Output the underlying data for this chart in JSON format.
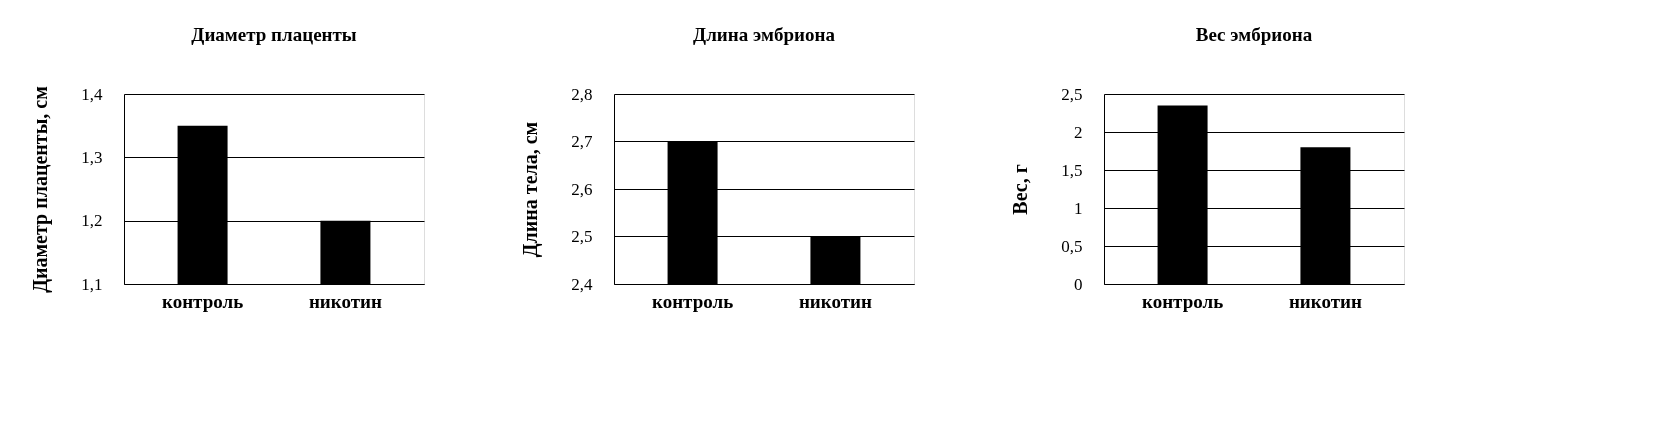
{
  "chart_data": [
    {
      "type": "bar",
      "title": "Диаметр плаценты",
      "ylabel": "Диаметр плаценты, см",
      "categories": [
        "контроль",
        "никотин"
      ],
      "values": [
        1.35,
        1.2
      ],
      "color": "#000000",
      "ylim": [
        1.1,
        1.4
      ],
      "yticks": [
        {
          "value": 1.1,
          "label": "1,1"
        },
        {
          "value": 1.2,
          "label": "1,2"
        },
        {
          "value": 1.3,
          "label": "1,3"
        },
        {
          "value": 1.4,
          "label": "1,4"
        }
      ],
      "grid": "y"
    },
    {
      "type": "bar",
      "title": "Длина эмбриона",
      "ylabel": "Длина тела, см",
      "categories": [
        "контроль",
        "никотин"
      ],
      "values": [
        2.7,
        2.5
      ],
      "color": "#000000",
      "ylim": [
        2.4,
        2.8
      ],
      "yticks": [
        {
          "value": 2.4,
          "label": "2,4"
        },
        {
          "value": 2.5,
          "label": "2,5"
        },
        {
          "value": 2.6,
          "label": "2,6"
        },
        {
          "value": 2.7,
          "label": "2,7"
        },
        {
          "value": 2.8,
          "label": "2,8"
        }
      ],
      "grid": "y"
    },
    {
      "type": "bar",
      "title": "Вес эмбриона",
      "ylabel": "Вес, г",
      "categories": [
        "контроль",
        "никотин"
      ],
      "values": [
        2.35,
        1.8
      ],
      "color": "#000000",
      "ylim": [
        0,
        2.5
      ],
      "yticks": [
        0,
        {
          "value": 0.5,
          "label": "0,5"
        },
        1,
        {
          "value": 1.5,
          "label": "1,5"
        },
        2,
        {
          "value": 2.5,
          "label": "2,5"
        }
      ],
      "grid": "y"
    }
  ]
}
